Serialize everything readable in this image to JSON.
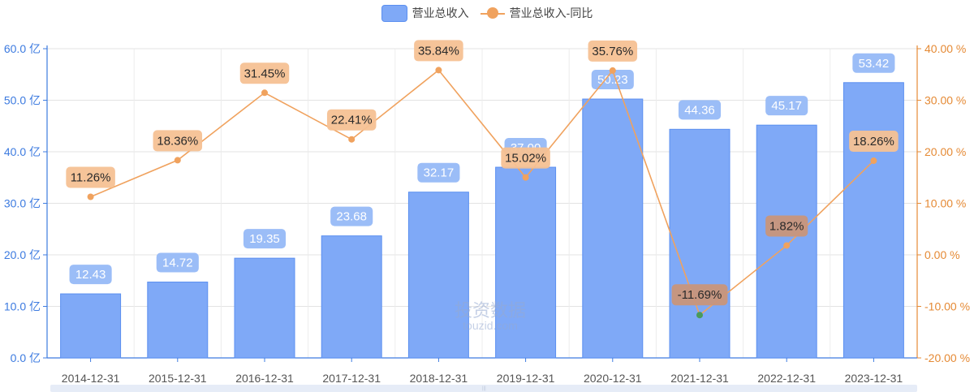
{
  "legend": {
    "revenue_label": "营业总收入",
    "yoy_label": "营业总收入-同比"
  },
  "watermark": {
    "main": "投资数据",
    "sub": "touzid.com"
  },
  "colors": {
    "bar_fill": "#7fa9f7",
    "bar_edge": "#5b8ff0",
    "bar_label_bg": "#9bbdf7",
    "line": "#f0a25e",
    "line_label_bg": "#f6c193",
    "line_label_bg_low": "#c9957a",
    "left_axis": "#3d7be0",
    "right_axis": "#e58a35",
    "negative_point": "#4a9a5a"
  },
  "chart_data": {
    "type": "bar",
    "categories": [
      "2014-12-31",
      "2015-12-31",
      "2016-12-31",
      "2017-12-31",
      "2018-12-31",
      "2019-12-31",
      "2020-12-31",
      "2021-12-31",
      "2022-12-31",
      "2023-12-31"
    ],
    "series": [
      {
        "name": "营业总收入",
        "type": "bar",
        "axis": "left",
        "values": [
          12.43,
          14.72,
          19.35,
          23.68,
          32.17,
          37.0,
          50.23,
          44.36,
          45.17,
          53.42
        ],
        "labels": [
          "12.43",
          "14.72",
          "19.35",
          "23.68",
          "32.17",
          "37.00",
          "50.23",
          "44.36",
          "45.17",
          "53.42"
        ]
      },
      {
        "name": "营业总收入-同比",
        "type": "line",
        "axis": "right",
        "values": [
          11.26,
          18.36,
          31.45,
          22.41,
          35.84,
          15.02,
          35.76,
          -11.69,
          1.82,
          18.26
        ],
        "labels": [
          "11.26%",
          "18.36%",
          "31.45%",
          "22.41%",
          "35.84%",
          "15.02%",
          "35.76%",
          "-11.69%",
          "1.82%",
          "18.26%"
        ]
      }
    ],
    "y_left": {
      "min": 0,
      "max": 60,
      "ticks": [
        "0.0 亿",
        "10.0 亿",
        "20.0 亿",
        "30.0 亿",
        "40.0 亿",
        "50.0 亿",
        "60.0 亿"
      ]
    },
    "y_right": {
      "min": -20,
      "max": 40,
      "ticks": [
        "-20.00 %",
        "-10.00 %",
        "0.00 %",
        "10.00 %",
        "20.00 %",
        "30.00 %",
        "40.00 %"
      ]
    },
    "grid": true,
    "legend_position": "top-center"
  }
}
